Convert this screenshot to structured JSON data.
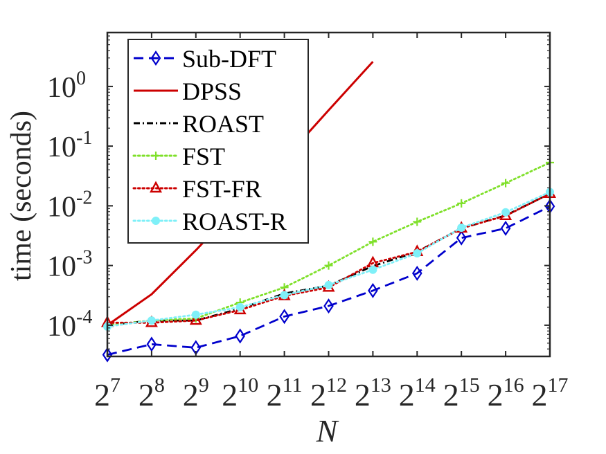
{
  "chart_data": {
    "type": "line",
    "title": "",
    "xlabel": "N",
    "ylabel": "time (seconds)",
    "x": [
      7,
      8,
      9,
      10,
      11,
      12,
      13,
      14,
      15,
      16,
      17
    ],
    "x_tick_base": "2",
    "x_tick_exponents": [
      "7",
      "8",
      "9",
      "10",
      "11",
      "12",
      "13",
      "14",
      "15",
      "16",
      "17"
    ],
    "xlim": [
      7,
      17
    ],
    "y_scale": "log",
    "ylim": [
      3e-05,
      8
    ],
    "y_ticks": [
      0.0001,
      0.001,
      0.01,
      0.1,
      1
    ],
    "y_tick_base": "10",
    "y_tick_exponents": [
      "-4",
      "-3",
      "-2",
      "-1",
      "0"
    ],
    "grid": false,
    "legend_position": "top-left",
    "series": [
      {
        "name": "Sub-DFT",
        "color": "#0000cc",
        "line_style": "dashed",
        "marker": "diamond",
        "x": [
          7,
          8,
          9,
          10,
          11,
          12,
          13,
          14,
          15,
          16,
          17
        ],
        "values": [
          3.2e-05,
          4.8e-05,
          4.2e-05,
          6.6e-05,
          0.00014,
          0.00021,
          0.00038,
          0.00074,
          0.0029,
          0.0042,
          0.0098
        ]
      },
      {
        "name": "DPSS",
        "color": "#cc0000",
        "line_style": "solid",
        "marker": "none",
        "x": [
          7,
          8,
          9,
          10,
          11,
          12,
          13
        ],
        "values": [
          0.0001,
          0.00033,
          0.0018,
          0.011,
          0.06,
          0.4,
          2.6
        ]
      },
      {
        "name": "ROAST",
        "color": "#000000",
        "line_style": "dashdot",
        "marker": "none",
        "x": [
          7,
          8,
          9,
          10,
          11,
          12,
          13,
          14,
          15,
          16,
          17
        ],
        "values": [
          0.0001,
          0.00012,
          0.00012,
          0.00019,
          0.00034,
          0.00046,
          0.00098,
          0.0017,
          0.0042,
          0.0069,
          0.016
        ]
      },
      {
        "name": "FST",
        "color": "#7fe02a",
        "line_style": "dotted",
        "marker": "plus",
        "x": [
          7,
          8,
          9,
          10,
          11,
          12,
          13,
          14,
          15,
          16,
          17
        ],
        "values": [
          0.0001,
          0.00012,
          0.00013,
          0.00024,
          0.00043,
          0.001,
          0.0025,
          0.0054,
          0.011,
          0.024,
          0.053
        ]
      },
      {
        "name": "FST-FR",
        "color": "#cc0000",
        "line_style": "dotted",
        "marker": "triangle",
        "x": [
          7,
          8,
          9,
          10,
          11,
          12,
          13,
          14,
          15,
          16,
          17
        ],
        "values": [
          0.00011,
          0.00011,
          0.00012,
          0.00018,
          0.00031,
          0.00043,
          0.0011,
          0.0017,
          0.0042,
          0.0068,
          0.016
        ]
      },
      {
        "name": "ROAST-R",
        "color": "#7ff0f8",
        "line_style": "dotted",
        "marker": "circle",
        "x": [
          7,
          8,
          9,
          10,
          11,
          12,
          13,
          14,
          15,
          16,
          17
        ],
        "values": [
          9.5e-05,
          0.00012,
          0.00015,
          0.0002,
          0.00032,
          0.00047,
          0.00085,
          0.0016,
          0.0043,
          0.0078,
          0.017
        ]
      }
    ]
  }
}
